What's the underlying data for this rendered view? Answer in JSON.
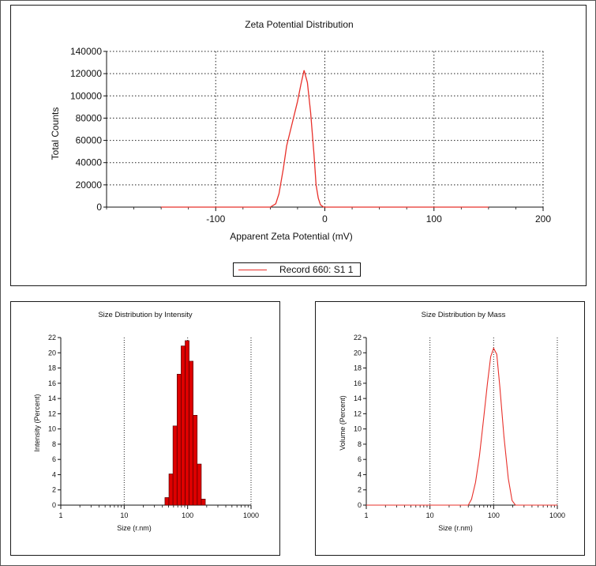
{
  "colors": {
    "series": "#e8302a",
    "bar_fill": "#dd0000",
    "bar_stroke": "#440000"
  },
  "chart_data": [
    {
      "type": "line",
      "title": "Zeta Potential Distribution",
      "xlabel": "Apparent Zeta Potential (mV)",
      "ylabel": "Total Counts",
      "xlim": [
        -200,
        200
      ],
      "ylim": [
        0,
        140000
      ],
      "xticks": [
        -100,
        0,
        100,
        200
      ],
      "xtick_labels": [
        "-100",
        "0",
        "100",
        "200"
      ],
      "yticks": [
        0,
        20000,
        40000,
        60000,
        80000,
        100000,
        120000,
        140000
      ],
      "ytick_labels": [
        "0",
        "20000",
        "40000",
        "60000",
        "80000",
        "100000",
        "120000",
        "140000"
      ],
      "grid": true,
      "legend_position": "bottom",
      "series": [
        {
          "name": "Record 660: S1 1",
          "x": [
            -150,
            -50,
            -45,
            -42,
            -38,
            -35,
            -30,
            -25,
            -22,
            -19,
            -16,
            -13,
            -10,
            -8,
            -6,
            -4,
            -1,
            150
          ],
          "y": [
            0,
            0,
            3000,
            12000,
            35000,
            55000,
            75000,
            95000,
            110000,
            123000,
            112000,
            85000,
            48000,
            20000,
            8000,
            2000,
            0,
            0
          ]
        }
      ]
    },
    {
      "type": "bar",
      "title": "Size Distribution by Intensity",
      "xlabel": "Size (r.nm)",
      "ylabel": "Intensity (Percent)",
      "xscale": "log",
      "xlim": [
        1,
        1000
      ],
      "ylim": [
        0,
        22
      ],
      "xticks": [
        1,
        10,
        100,
        1000
      ],
      "xtick_labels": [
        "1",
        "10",
        "100",
        "1000"
      ],
      "yticks": [
        0,
        2,
        4,
        6,
        8,
        10,
        12,
        14,
        16,
        18,
        20,
        22
      ],
      "ytick_labels": [
        "0",
        "2",
        "4",
        "6",
        "8",
        "10",
        "12",
        "14",
        "16",
        "18",
        "20",
        "22"
      ],
      "grid": true,
      "bin_edges": [
        43.8,
        50.7,
        58.8,
        68.1,
        78.8,
        91.3,
        105.7,
        122.4,
        141.8,
        164.2,
        190.1
      ],
      "values": [
        1.0,
        4.1,
        10.4,
        17.2,
        20.9,
        21.6,
        18.9,
        11.8,
        5.4,
        0.8
      ]
    },
    {
      "type": "line",
      "title": "Size Distribution by Mass",
      "xlabel": "Size (r.nm)",
      "ylabel": "Volume (Percent)",
      "xscale": "log",
      "xlim": [
        1,
        1000
      ],
      "ylim": [
        0,
        22
      ],
      "xticks": [
        1,
        10,
        100,
        1000
      ],
      "xtick_labels": [
        "1",
        "10",
        "100",
        "1000"
      ],
      "yticks": [
        0,
        2,
        4,
        6,
        8,
        10,
        12,
        14,
        16,
        18,
        20,
        22
      ],
      "ytick_labels": [
        "0",
        "2",
        "4",
        "6",
        "8",
        "10",
        "12",
        "14",
        "16",
        "18",
        "20",
        "22"
      ],
      "grid": true,
      "series": [
        {
          "x": [
            1,
            40,
            45,
            52,
            60,
            70,
            80,
            90,
            100,
            112,
            125,
            145,
            170,
            195,
            220,
            1000
          ],
          "y": [
            0,
            0,
            0.8,
            3.0,
            6.5,
            11.5,
            16.0,
            19.5,
            20.6,
            19.8,
            15.5,
            9.0,
            3.5,
            0.6,
            0,
            0
          ]
        }
      ]
    }
  ]
}
